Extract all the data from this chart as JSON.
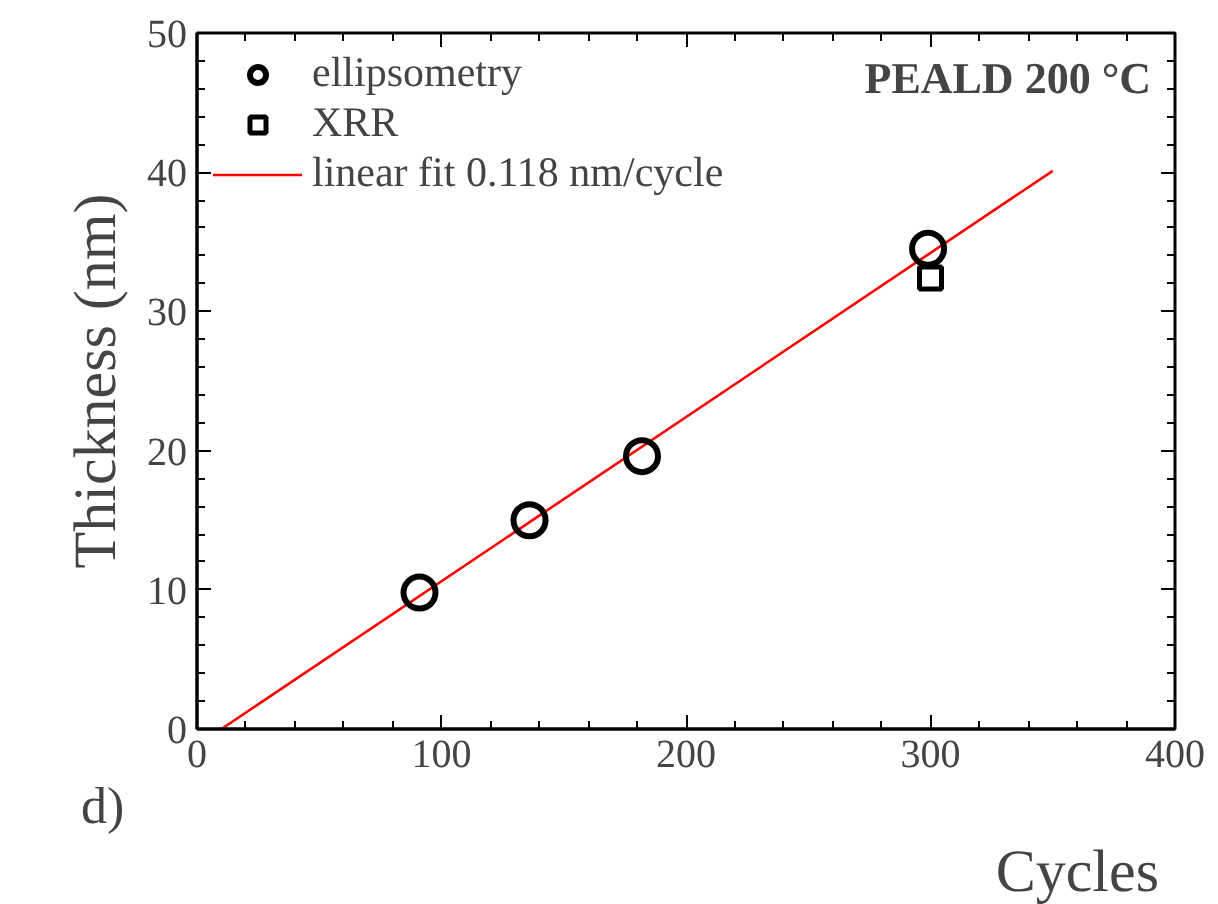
{
  "chart_data": {
    "type": "scatter",
    "xlabel": "Cycles",
    "ylabel": "Thickness (nm)",
    "annotations": [
      "PEALD 200 °C",
      "d)"
    ],
    "xlim": [
      0,
      400
    ],
    "ylim": [
      0,
      50
    ],
    "xticks": [
      0,
      100,
      200,
      300,
      400
    ],
    "yticks": [
      0,
      10,
      20,
      30,
      40,
      50
    ],
    "grid": false,
    "legend": "top left",
    "series": [
      {
        "name": "ellipsometry",
        "color": "#000000",
        "marker": "circle",
        "x": [
          91,
          136,
          182,
          299
        ],
        "values": [
          9.8,
          15.0,
          19.6,
          34.5
        ]
      },
      {
        "name": "XRR",
        "color": "#000000",
        "marker": "square",
        "x": [
          300
        ],
        "values": [
          32.4
        ]
      },
      {
        "name": "linear fit 0.118 nm/cycle",
        "type": "line",
        "color": "#ff0000",
        "x": [
          10,
          350
        ],
        "values": [
          0,
          40.1
        ]
      }
    ]
  }
}
